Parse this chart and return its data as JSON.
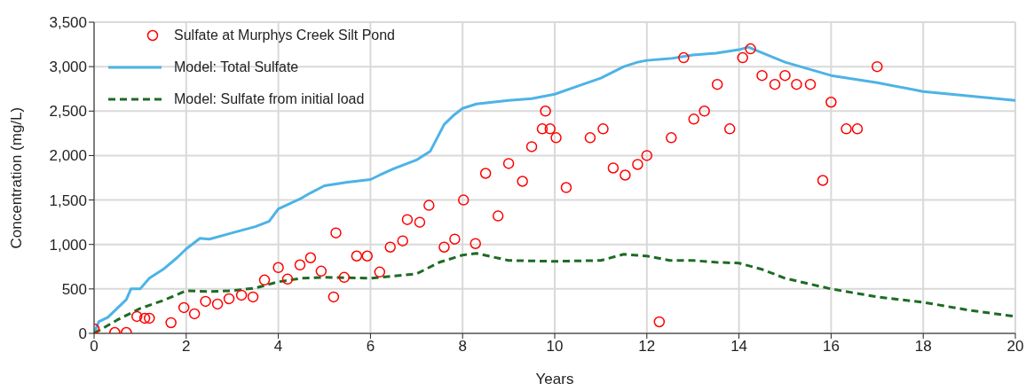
{
  "chart_data": {
    "type": "line",
    "xlabel": "Years",
    "ylabel": "Concentration  (mg/L)",
    "xlim": [
      0,
      20
    ],
    "xticks": [
      0,
      2,
      4,
      6,
      8,
      10,
      12,
      14,
      16,
      18,
      20
    ],
    "ylim": [
      0,
      3500
    ],
    "yticks": [
      0,
      500,
      {
        "value": 1000,
        "label": "1,000"
      },
      {
        "value": 1500,
        "label": "1,500"
      },
      {
        "value": 2000,
        "label": "2,000"
      },
      {
        "value": 2500,
        "label": "2,500"
      },
      {
        "value": 3000,
        "label": "3,000"
      },
      {
        "value": 3500,
        "label": "3,500"
      }
    ],
    "grid": true,
    "legend": "top left",
    "series": [
      {
        "name": "Sulfate at Murphys Creek Silt Pond",
        "type": "scatter",
        "marker": "circle",
        "color": "#ff0000",
        "x": [
          0,
          0.45,
          0.7,
          0.93,
          1.1,
          1.2,
          1.67,
          1.95,
          2.18,
          2.42,
          2.68,
          2.93,
          3.2,
          3.45,
          3.7,
          4.0,
          4.2,
          4.47,
          4.7,
          4.93,
          5.2,
          5.25,
          5.43,
          5.7,
          5.93,
          6.2,
          6.43,
          6.7,
          6.8,
          7.07,
          7.27,
          7.6,
          7.83,
          8.02,
          8.28,
          8.5,
          8.77,
          9.0,
          9.3,
          9.5,
          9.73,
          9.8,
          9.9,
          10.03,
          10.25,
          10.77,
          11.05,
          11.27,
          11.53,
          11.8,
          12.0,
          12.27,
          12.53,
          12.8,
          13.02,
          13.25,
          13.53,
          13.8,
          14.08,
          14.25,
          14.5,
          14.78,
          15.0,
          15.25,
          15.55,
          15.82,
          16.0,
          16.33,
          16.57,
          17.0
        ],
        "values": [
          50,
          10,
          10,
          190,
          170,
          170,
          120,
          290,
          220,
          360,
          330,
          390,
          430,
          410,
          600,
          740,
          610,
          770,
          850,
          700,
          410,
          1130,
          630,
          870,
          870,
          690,
          970,
          1040,
          1280,
          1250,
          1440,
          970,
          1060,
          1500,
          1010,
          1800,
          1320,
          1910,
          1710,
          2100,
          2300,
          2500,
          2300,
          2200,
          1640,
          2200,
          2300,
          1860,
          1780,
          1900,
          2000,
          130,
          2200,
          3100,
          2410,
          2500,
          2800,
          2300,
          3100,
          3200,
          2900,
          2800,
          2900,
          2800,
          2800,
          1720,
          2600,
          2300,
          2300,
          3000
        ]
      },
      {
        "name": "Model: Total Sulfate",
        "marker": "none",
        "line_style": "solid",
        "color": "#4db3e6",
        "x": [
          0,
          0.1,
          0.3,
          0.5,
          0.7,
          0.8,
          1.0,
          1.2,
          1.5,
          1.8,
          2.0,
          2.3,
          2.5,
          3,
          3.5,
          3.8,
          4.0,
          4.5,
          4.7,
          5.0,
          5.5,
          6.0,
          6.2,
          6.5,
          7.0,
          7.3,
          7.6,
          7.8,
          8.0,
          8.3,
          9.0,
          9.5,
          10.0,
          10.5,
          11.0,
          11.5,
          11.8,
          12.0,
          12.5,
          13.0,
          13.5,
          14.0,
          14.2,
          15,
          16,
          17,
          18,
          19,
          20
        ],
        "values": [
          0,
          130,
          180,
          280,
          380,
          500,
          500,
          620,
          720,
          850,
          950,
          1070,
          1060,
          1130,
          1200,
          1260,
          1400,
          1520,
          1580,
          1660,
          1700,
          1730,
          1780,
          1850,
          1950,
          2050,
          2350,
          2450,
          2530,
          2580,
          2620,
          2640,
          2690,
          2780,
          2870,
          3000,
          3050,
          3070,
          3090,
          3130,
          3150,
          3190,
          3220,
          3050,
          2900,
          2820,
          2720,
          2670,
          2620
        ]
      },
      {
        "name": "Model: Sulfate from initial load",
        "marker": "none",
        "line_style": "dashed",
        "color": "#1e6b23",
        "x": [
          0,
          0.5,
          1.0,
          1.5,
          2.0,
          2.5,
          3,
          3.5,
          4.0,
          4.5,
          5,
          6,
          7,
          7.5,
          8,
          8.3,
          9,
          10,
          11,
          11.5,
          12,
          12.5,
          13,
          13.5,
          14,
          14.5,
          15,
          16,
          17,
          18,
          19,
          20
        ],
        "values": [
          0,
          150,
          280,
          370,
          480,
          470,
          480,
          510,
          580,
          620,
          630,
          620,
          670,
          800,
          880,
          900,
          820,
          810,
          820,
          890,
          870,
          820,
          820,
          800,
          790,
          720,
          620,
          500,
          410,
          350,
          260,
          190
        ]
      }
    ]
  }
}
